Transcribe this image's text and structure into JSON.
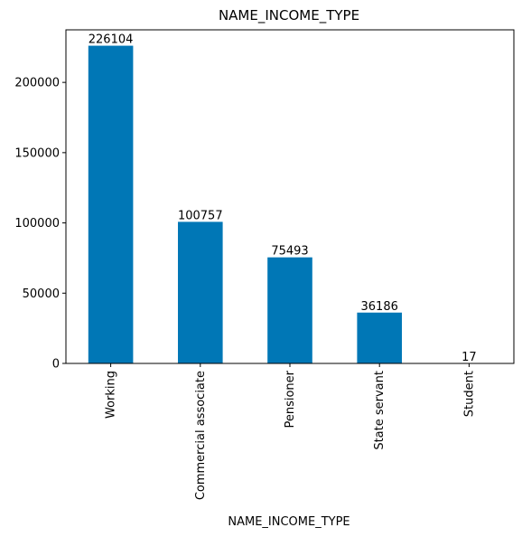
{
  "chart_data": {
    "type": "bar",
    "title": "NAME_INCOME_TYPE",
    "xlabel": "NAME_INCOME_TYPE",
    "ylabel": "",
    "categories": [
      "Working",
      "Commercial associate",
      "Pensioner",
      "State servant",
      "Student"
    ],
    "values": [
      226104,
      100757,
      75493,
      36186,
      17
    ],
    "data_labels": [
      "226104",
      "100757",
      "75493",
      "36186",
      "17"
    ],
    "yticks": [
      0,
      50000,
      100000,
      150000,
      200000
    ],
    "ytick_labels": [
      "0",
      "50000",
      "100000",
      "150000",
      "200000"
    ],
    "ylim": [
      0,
      237409
    ],
    "grid": false,
    "legend": "none",
    "bar_color": "#0077b6"
  }
}
